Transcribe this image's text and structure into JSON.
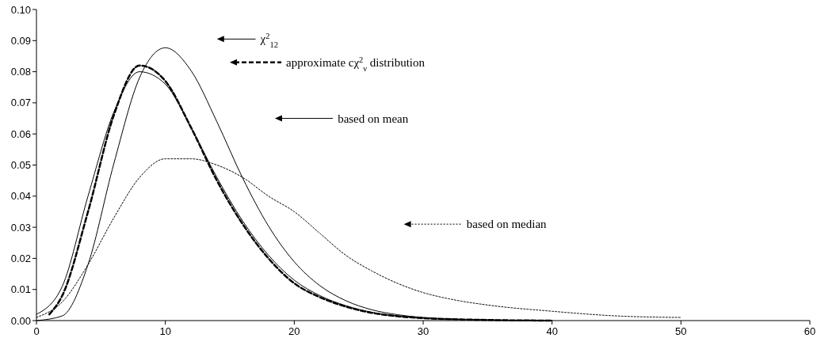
{
  "chart_data": {
    "type": "line",
    "xlim": [
      0,
      60
    ],
    "xticks": [
      0,
      10,
      20,
      30,
      40,
      50,
      60
    ],
    "ylim": [
      0,
      0.1
    ],
    "yticks": [
      {
        "value": 0,
        "label": "0.00"
      },
      {
        "value": 0.01,
        "label": "0.01"
      },
      {
        "value": 0.02,
        "label": "0.02"
      },
      {
        "value": 0.03,
        "label": "0.03"
      },
      {
        "value": 0.04,
        "label": "0.04"
      },
      {
        "value": 0.05,
        "label": "0.05"
      },
      {
        "value": 0.06,
        "label": "0.06"
      },
      {
        "value": 0.07,
        "label": "0.07"
      },
      {
        "value": 0.08,
        "label": "0.08"
      },
      {
        "value": 0.09,
        "label": "0.09"
      },
      {
        "value": 0.1,
        "label": "0.10"
      }
    ],
    "grid": false,
    "legend": "top",
    "series": [
      {
        "name": "χ$^{2}$$_{12}$",
        "color": "#000000",
        "line_style": "solid",
        "x": [
          0,
          2,
          4,
          6,
          8,
          10,
          12,
          14,
          16,
          18,
          20,
          22,
          24,
          26,
          28,
          30,
          35,
          40
        ],
        "values": [
          0,
          0.0015,
          0.018,
          0.0504,
          0.0781,
          0.0877,
          0.0803,
          0.0639,
          0.0458,
          0.0304,
          0.0189,
          0.0112,
          0.0064,
          0.0035,
          0.0019,
          0.001,
          0.0002,
          0
        ]
      },
      {
        "name": "approximate cχ$^{2}$$_{ν}$ distribution",
        "color": "#000000",
        "line_style": "dashed",
        "x": [
          1,
          2,
          4,
          6,
          8,
          10,
          12,
          14,
          16,
          18,
          20,
          22,
          24,
          26,
          28,
          30,
          35,
          40
        ],
        "values": [
          0.002,
          0.008,
          0.035,
          0.066,
          0.082,
          0.077,
          0.062,
          0.045,
          0.031,
          0.02,
          0.012,
          0.0075,
          0.0045,
          0.0025,
          0.0014,
          0.0008,
          0.0002,
          0
        ]
      },
      {
        "name": "based on mean",
        "color": "#000000",
        "line_style": "solid",
        "x": [
          0,
          2,
          4,
          6,
          8,
          10,
          12,
          14,
          16,
          18,
          20,
          22,
          24,
          26,
          28,
          30,
          35,
          40
        ],
        "values": [
          0.002,
          0.011,
          0.04,
          0.067,
          0.08,
          0.076,
          0.062,
          0.046,
          0.032,
          0.021,
          0.013,
          0.008,
          0.0048,
          0.0027,
          0.0015,
          0.0008,
          0.0002,
          0
        ]
      },
      {
        "name": "based on median",
        "color": "#000000",
        "line_style": "dotted",
        "x": [
          0,
          2,
          4,
          6,
          8,
          10,
          12,
          14,
          16,
          18,
          20,
          22,
          24,
          26,
          28,
          30,
          32,
          35,
          40,
          45,
          50
        ],
        "values": [
          0.001,
          0.006,
          0.018,
          0.033,
          0.046,
          0.052,
          0.052,
          0.05,
          0.046,
          0.04,
          0.035,
          0.028,
          0.021,
          0.016,
          0.012,
          0.009,
          0.007,
          0.005,
          0.003,
          0.0015,
          0.001
        ]
      }
    ]
  }
}
